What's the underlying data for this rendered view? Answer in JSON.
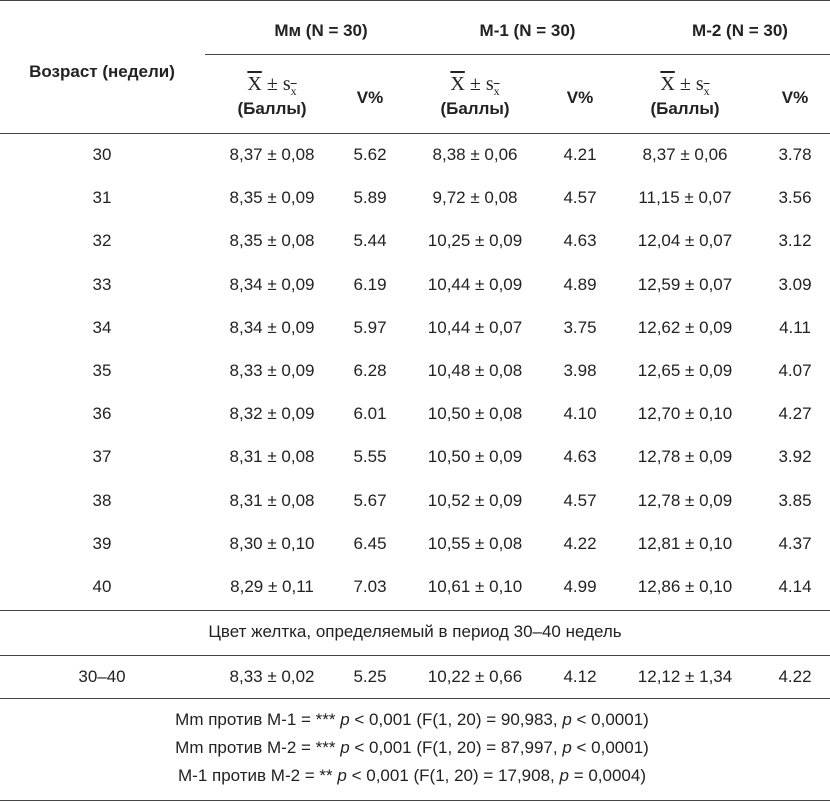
{
  "table": {
    "age_header": "Возраст (недели)",
    "groups": [
      {
        "title": "Мм (N = 30)",
        "mean": "X",
        "pm": "±",
        "s": "s",
        "sub": "x",
        "unit": "(Баллы)",
        "v": "V%"
      },
      {
        "title": "M-1 (N = 30)",
        "mean": "X",
        "pm": "±",
        "s": "s",
        "sub": "x",
        "unit": "(Баллы)",
        "v": "V%"
      },
      {
        "title": "M-2 (N = 30)",
        "mean": "X",
        "pm": "±",
        "s": "s",
        "sub": "x",
        "unit": "(Баллы)",
        "v": "V%"
      }
    ],
    "rows": [
      [
        "30",
        "8,37 ± 0,08",
        "5.62",
        "8,38 ± 0,06",
        "4.21",
        "8,37 ± 0,06",
        "3.78"
      ],
      [
        "31",
        "8,35 ± 0,09",
        "5.89",
        "9,72 ± 0,08",
        "4.57",
        "11,15 ± 0,07",
        "3.56"
      ],
      [
        "32",
        "8,35 ± 0,08",
        "5.44",
        "10,25 ± 0,09",
        "4.63",
        "12,04 ± 0,07",
        "3.12"
      ],
      [
        "33",
        "8,34 ± 0,09",
        "6.19",
        "10,44 ± 0,09",
        "4.89",
        "12,59 ± 0,07",
        "3.09"
      ],
      [
        "34",
        "8,34 ± 0,09",
        "5.97",
        "10,44 ± 0,07",
        "3.75",
        "12,62 ± 0,09",
        "4.11"
      ],
      [
        "35",
        "8,33 ± 0,09",
        "6.28",
        "10,48 ± 0,08",
        "3.98",
        "12,65 ± 0,09",
        "4.07"
      ],
      [
        "36",
        "8,32 ± 0,09",
        "6.01",
        "10,50 ± 0,08",
        "4.10",
        "12,70 ± 0,10",
        "4.27"
      ],
      [
        "37",
        "8,31 ± 0,08",
        "5.55",
        "10,50 ± 0,09",
        "4.63",
        "12,78 ± 0,09",
        "3.92"
      ],
      [
        "38",
        "8,31 ± 0,08",
        "5.67",
        "10,52 ± 0,09",
        "4.57",
        "12,78 ± 0,09",
        "3.85"
      ],
      [
        "39",
        "8,30 ± 0,10",
        "6.45",
        "10,55 ± 0,08",
        "4.22",
        "12,81 ± 0,10",
        "4.37"
      ],
      [
        "40",
        "8,29 ± 0,11",
        "7.03",
        "10,61 ± 0,10",
        "4.99",
        "12,86 ± 0,10",
        "4.14"
      ]
    ],
    "section": "Цвет желтка, определяемый в период 30–40 недель",
    "summary": [
      "30–40",
      "8,33 ± 0,02",
      "5.25",
      "10,22 ± 0,66",
      "4.12",
      "12,12 ± 1,34",
      "4.22"
    ],
    "notes": [
      [
        "Mm против M-1 = *** ",
        "p",
        " < 0,001 (F(1, 20) = 90,983, ",
        "p",
        " < 0,0001)"
      ],
      [
        "Mm против M-2 = *** ",
        "p",
        " < 0,001 (F(1, 20) = 87,997, ",
        "p",
        " < 0,0001)"
      ],
      [
        "M-1 против M-2 = ** ",
        "p",
        " < 0,001 (F(1, 20) = 17,908, ",
        "p",
        " = 0,0004)"
      ]
    ]
  }
}
